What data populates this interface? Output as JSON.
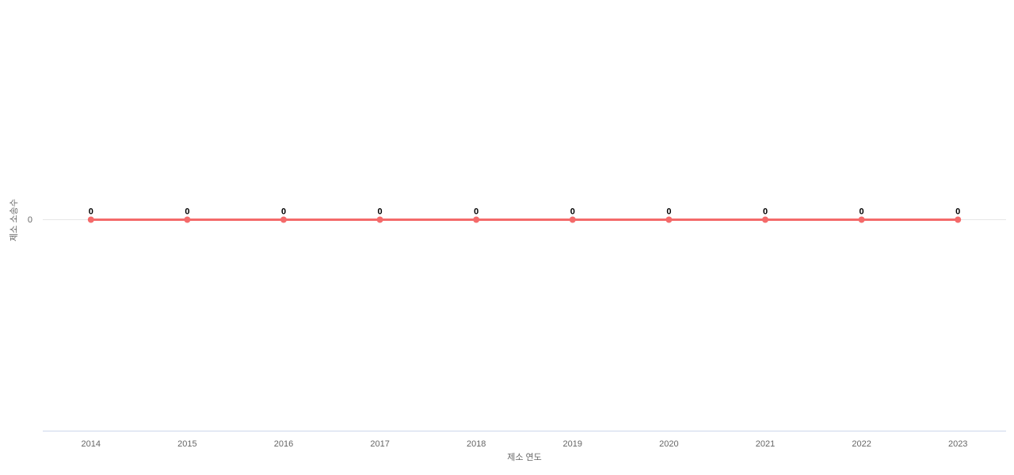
{
  "chart_data": {
    "type": "line",
    "categories": [
      "2014",
      "2015",
      "2016",
      "2017",
      "2018",
      "2019",
      "2020",
      "2021",
      "2022",
      "2023"
    ],
    "series": [
      {
        "name": "제소 소송수",
        "values": [
          0,
          0,
          0,
          0,
          0,
          0,
          0,
          0,
          0,
          0
        ],
        "color": "#f46a6a"
      }
    ],
    "title": "",
    "xlabel": "제소 연도",
    "ylabel": "제소 소송수",
    "y_tick_label": "0",
    "y_axis_ticks": [
      0
    ],
    "ylim": [
      0,
      1
    ],
    "grid": "single-zero-gridline",
    "legend": "none",
    "data_labels": true
  },
  "colors": {
    "background": "#ffffff",
    "series": "#f46a6a",
    "gridline": "#e6e6e6",
    "axis_line": "#ccd6eb",
    "tick_label": "#666666",
    "axis_title": "#666666",
    "data_label": "#000000"
  }
}
